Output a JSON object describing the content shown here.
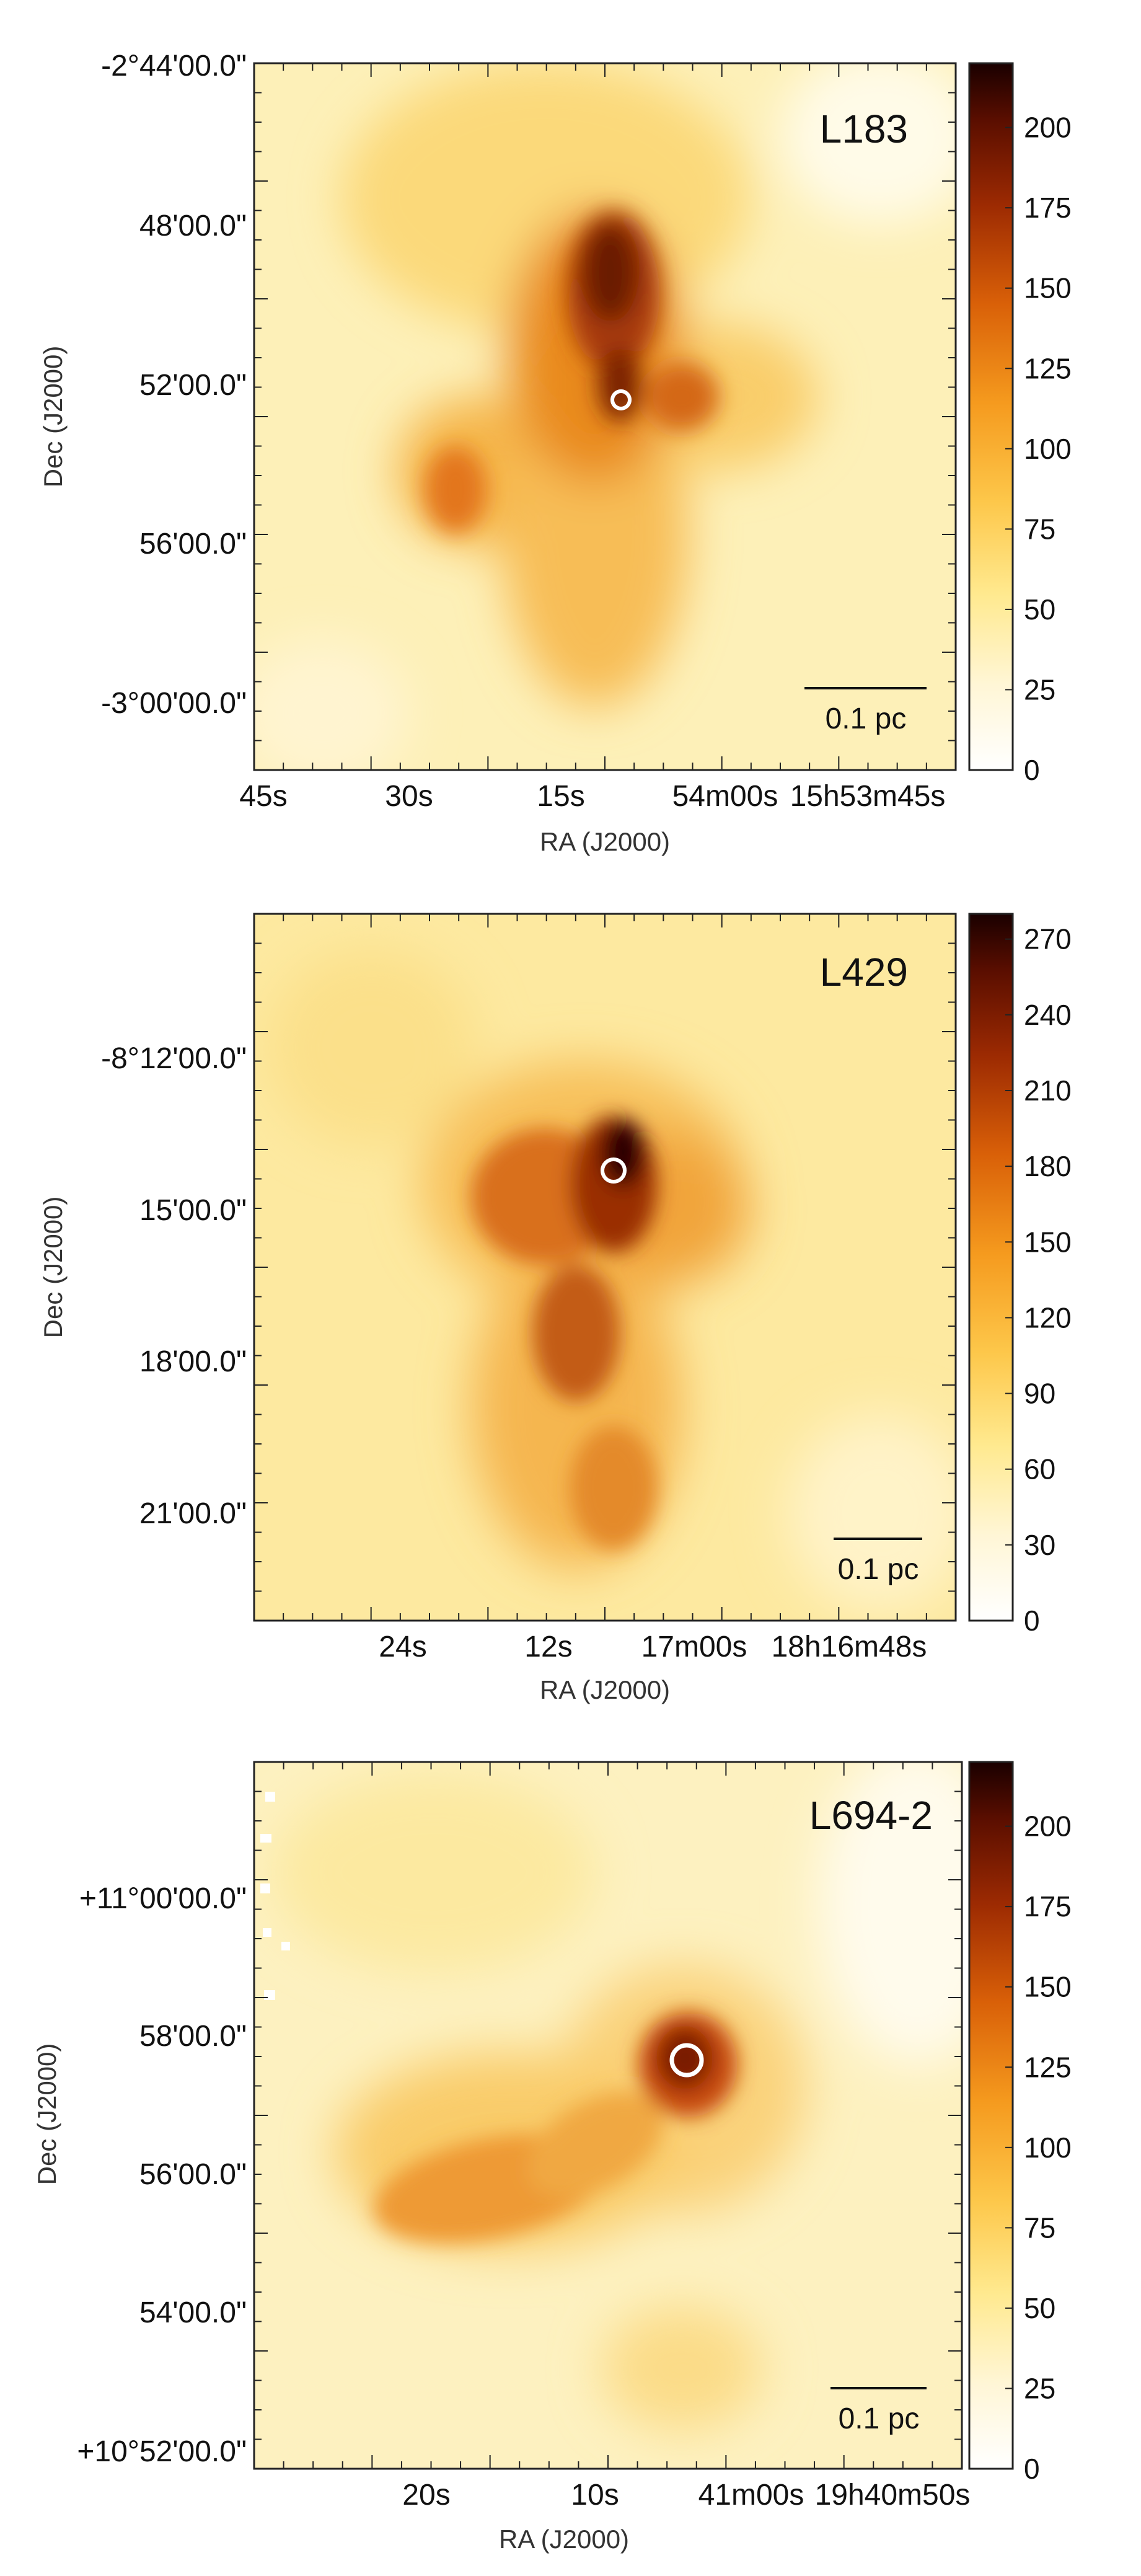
{
  "panels": [
    {
      "name": "L183",
      "dec_ticks": [
        "-2°44'00.0\"",
        "48'00.0\"",
        "52'00.0\"",
        "56'00.0\"",
        "-3°00'00.0\""
      ],
      "ra_ticks": [
        "45s",
        "30s",
        "15s",
        "54m00s",
        "15h53m45s"
      ],
      "ra_label": "RA (J2000)",
      "dec_label": "Dec (J2000)",
      "scalebar": "0.1 pc",
      "colorbar_ticks": [
        "0",
        "25",
        "50",
        "75",
        "100",
        "125",
        "150",
        "175",
        "200"
      ],
      "colorbar_range": [
        0,
        220
      ]
    },
    {
      "name": "L429",
      "dec_ticks": [
        "-8°12'00.0\"",
        "15'00.0\"",
        "18'00.0\"",
        "21'00.0\""
      ],
      "ra_ticks": [
        "24s",
        "12s",
        "17m00s",
        "18h16m48s"
      ],
      "ra_label": "RA (J2000)",
      "dec_label": "Dec (J2000)",
      "scalebar": "0.1 pc",
      "colorbar_ticks": [
        "0",
        "30",
        "60",
        "90",
        "120",
        "150",
        "180",
        "210",
        "240",
        "270"
      ],
      "colorbar_range": [
        0,
        280
      ]
    },
    {
      "name": "L694-2",
      "dec_ticks": [
        "+11°00'00.0\"",
        "58'00.0\"",
        "56'00.0\"",
        "54'00.0\"",
        "+10°52'00.0\""
      ],
      "ra_ticks": [
        "20s",
        "10s",
        "41m00s",
        "19h40m50s"
      ],
      "ra_label": "RA (J2000)",
      "dec_label": "Dec (J2000)",
      "scalebar": "0.1 pc",
      "colorbar_ticks": [
        "0",
        "25",
        "50",
        "75",
        "100",
        "125",
        "150",
        "175",
        "200"
      ],
      "colorbar_range": [
        0,
        220
      ]
    }
  ]
}
